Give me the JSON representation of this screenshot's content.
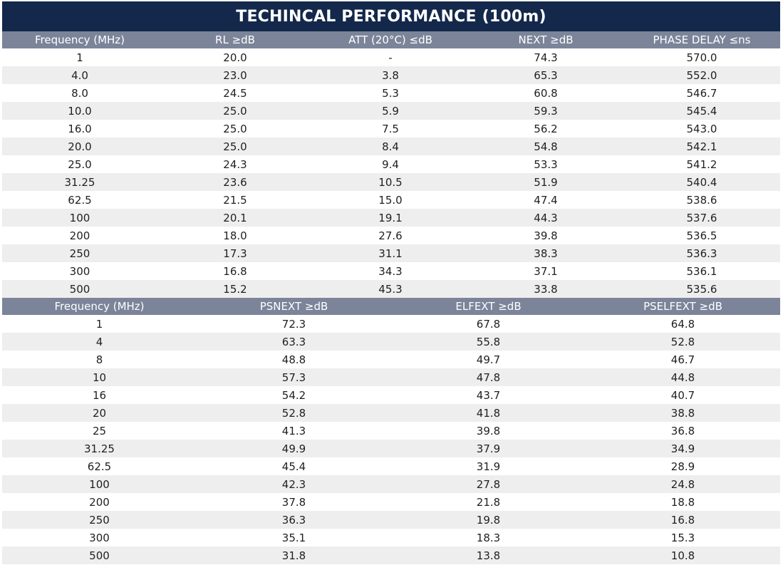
{
  "title": "TECHINCAL PERFORMANCE (100m)",
  "table1": {
    "headers": [
      "Frequency (MHz)",
      "RL ≥dB",
      "ATT (20°C) ≤dB",
      "NEXT ≥dB",
      "PHASE DELAY ≤ns"
    ],
    "rows": [
      [
        "1",
        "20.0",
        "-",
        "74.3",
        "570.0"
      ],
      [
        "4.0",
        "23.0",
        "3.8",
        "65.3",
        "552.0"
      ],
      [
        "8.0",
        "24.5",
        "5.3",
        "60.8",
        "546.7"
      ],
      [
        "10.0",
        "25.0",
        "5.9",
        "59.3",
        "545.4"
      ],
      [
        "16.0",
        "25.0",
        "7.5",
        "56.2",
        "543.0"
      ],
      [
        "20.0",
        "25.0",
        "8.4",
        "54.8",
        "542.1"
      ],
      [
        "25.0",
        "24.3",
        "9.4",
        "53.3",
        "541.2"
      ],
      [
        "31.25",
        "23.6",
        "10.5",
        "51.9",
        "540.4"
      ],
      [
        "62.5",
        "21.5",
        "15.0",
        "47.4",
        "538.6"
      ],
      [
        "100",
        "20.1",
        "19.1",
        "44.3",
        "537.6"
      ],
      [
        "200",
        "18.0",
        "27.6",
        "39.8",
        "536.5"
      ],
      [
        "250",
        "17.3",
        "31.1",
        "38.3",
        "536.3"
      ],
      [
        "300",
        "16.8",
        "34.3",
        "37.1",
        "536.1"
      ],
      [
        "500",
        "15.2",
        "45.3",
        "33.8",
        "535.6"
      ]
    ]
  },
  "table2": {
    "headers": [
      "Frequency (MHz)",
      "PSNEXT ≥dB",
      "ELFEXT ≥dB",
      "PSELFEXT ≥dB"
    ],
    "rows": [
      [
        "1",
        "72.3",
        "67.8",
        "64.8"
      ],
      [
        "4",
        "63.3",
        "55.8",
        "52.8"
      ],
      [
        "8",
        "48.8",
        "49.7",
        "46.7"
      ],
      [
        "10",
        "57.3",
        "47.8",
        "44.8"
      ],
      [
        "16",
        "54.2",
        "43.7",
        "40.7"
      ],
      [
        "20",
        "52.8",
        "41.8",
        "38.8"
      ],
      [
        "25",
        "41.3",
        "39.8",
        "36.8"
      ],
      [
        "31.25",
        "49.9",
        "37.9",
        "34.9"
      ],
      [
        "62.5",
        "45.4",
        "31.9",
        "28.9"
      ],
      [
        "100",
        "42.3",
        "27.8",
        "24.8"
      ],
      [
        "200",
        "37.8",
        "21.8",
        "18.8"
      ],
      [
        "250",
        "36.3",
        "19.8",
        "16.8"
      ],
      [
        "300",
        "35.1",
        "18.3",
        "15.3"
      ],
      [
        "500",
        "31.8",
        "13.8",
        "10.8"
      ]
    ]
  }
}
